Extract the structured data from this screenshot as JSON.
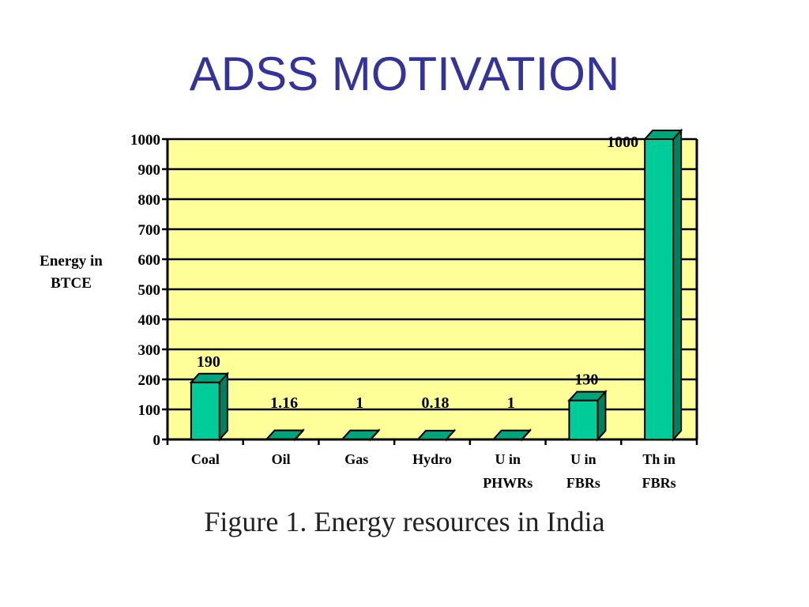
{
  "slide": {
    "title": "ADSS MOTIVATION",
    "caption": "Figure 1. Energy resources in India"
  },
  "chart_data": {
    "type": "bar",
    "categories": [
      [
        "Coal"
      ],
      [
        "Oil"
      ],
      [
        "Gas"
      ],
      [
        "Hydro"
      ],
      [
        "U in",
        "PHWRs"
      ],
      [
        "U in",
        "FBRs"
      ],
      [
        "Th in",
        "FBRs"
      ]
    ],
    "values": [
      190,
      1.16,
      1,
      0.18,
      1,
      130,
      1000
    ],
    "data_labels": [
      "190",
      "1.16",
      "1",
      "0.18",
      "1",
      "130",
      "1000"
    ],
    "ylabel": [
      "Energy in",
      "BTCE"
    ],
    "ylim": [
      0,
      1000
    ],
    "yticks": [
      0,
      100,
      200,
      300,
      400,
      500,
      600,
      700,
      800,
      900,
      1000
    ],
    "grid": true,
    "colors": {
      "plot_background": "#FFFF99",
      "bar_front": "#00CC99",
      "bar_top": "#00A47A",
      "bar_side": "#007F5F",
      "gridline": "#000000"
    }
  }
}
